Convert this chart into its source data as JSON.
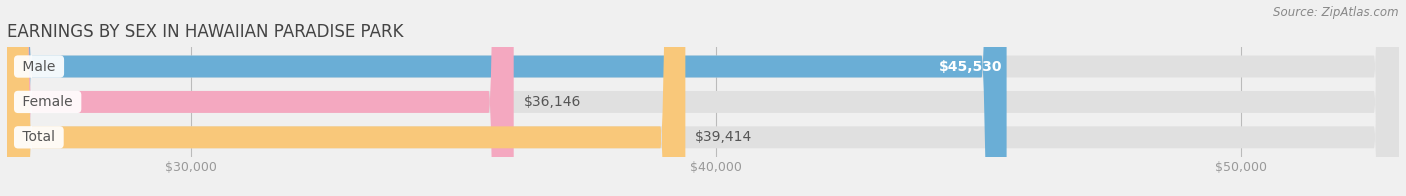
{
  "title": "EARNINGS BY SEX IN HAWAIIAN PARADISE PARK",
  "source_text": "Source: ZipAtlas.com",
  "categories": [
    "Male",
    "Female",
    "Total"
  ],
  "values": [
    45530,
    36146,
    39414
  ],
  "bar_colors": [
    "#6aaed6",
    "#f4a8c0",
    "#f9c87a"
  ],
  "bar_bg_color": "#e0e0e0",
  "label_texts": [
    "$45,530",
    "$36,146",
    "$39,414"
  ],
  "label_inside": [
    true,
    false,
    false
  ],
  "x_min": 26500,
  "x_max": 53000,
  "x_ticks": [
    30000,
    40000,
    50000
  ],
  "x_tick_labels": [
    "$30,000",
    "$40,000",
    "$50,000"
  ],
  "title_fontsize": 12,
  "label_fontsize": 10,
  "tick_fontsize": 9,
  "background_color": "#f0f0f0",
  "bar_height": 0.62,
  "category_label_color": "#555555",
  "value_label_color_inside": "#ffffff",
  "value_label_color_outside": "#555555"
}
